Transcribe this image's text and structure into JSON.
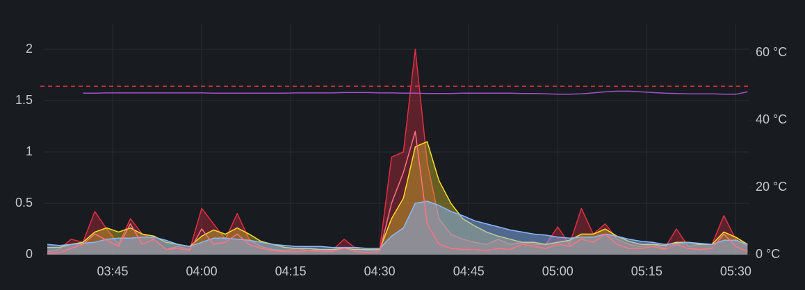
{
  "chart_data": {
    "type": "line",
    "x": [
      214,
      216,
      218,
      220,
      222,
      224,
      226,
      228,
      230,
      232,
      234,
      236,
      238,
      240,
      242,
      244,
      246,
      248,
      250,
      252,
      254,
      256,
      258,
      260,
      262,
      264,
      266,
      268,
      270,
      272,
      274,
      276,
      278,
      280,
      282,
      284,
      286,
      288,
      290,
      292,
      294,
      296,
      298,
      300,
      302,
      304,
      306,
      308,
      310,
      312,
      314,
      316,
      318,
      320,
      322,
      324,
      326,
      328,
      330,
      332
    ],
    "series": [
      {
        "color": "#e02f44",
        "fill": true,
        "values": [
          0.03,
          0.05,
          0.15,
          0.12,
          0.42,
          0.25,
          0.1,
          0.35,
          0.2,
          0.15,
          0.05,
          0.08,
          0.05,
          0.45,
          0.3,
          0.15,
          0.4,
          0.15,
          0.08,
          0.05,
          0.04,
          0.06,
          0.04,
          0.05,
          0.04,
          0.15,
          0.06,
          0.04,
          0.05,
          0.95,
          1.0,
          2.0,
          0.9,
          0.35,
          0.2,
          0.15,
          0.12,
          0.1,
          0.15,
          0.1,
          0.12,
          0.1,
          0.1,
          0.27,
          0.1,
          0.45,
          0.2,
          0.3,
          0.15,
          0.1,
          0.08,
          0.1,
          0.06,
          0.25,
          0.08,
          0.1,
          0.1,
          0.38,
          0.15,
          0.08
        ]
      },
      {
        "color": "#fade2a",
        "fill": true,
        "values": [
          0.07,
          0.07,
          0.1,
          0.12,
          0.22,
          0.26,
          0.22,
          0.26,
          0.2,
          0.18,
          0.12,
          0.1,
          0.08,
          0.18,
          0.24,
          0.2,
          0.26,
          0.2,
          0.13,
          0.1,
          0.07,
          0.06,
          0.06,
          0.05,
          0.05,
          0.06,
          0.05,
          0.05,
          0.05,
          0.35,
          0.55,
          1.05,
          1.1,
          0.72,
          0.5,
          0.35,
          0.28,
          0.22,
          0.18,
          0.15,
          0.12,
          0.12,
          0.1,
          0.12,
          0.14,
          0.2,
          0.2,
          0.25,
          0.18,
          0.13,
          0.1,
          0.1,
          0.09,
          0.12,
          0.12,
          0.1,
          0.1,
          0.22,
          0.17,
          0.1
        ]
      },
      {
        "color": "#8ab8ff",
        "fill": true,
        "values": [
          0.1,
          0.09,
          0.1,
          0.11,
          0.12,
          0.15,
          0.16,
          0.16,
          0.17,
          0.17,
          0.14,
          0.1,
          0.08,
          0.12,
          0.16,
          0.16,
          0.15,
          0.14,
          0.12,
          0.1,
          0.09,
          0.08,
          0.08,
          0.08,
          0.07,
          0.07,
          0.07,
          0.06,
          0.06,
          0.18,
          0.26,
          0.5,
          0.52,
          0.48,
          0.42,
          0.38,
          0.33,
          0.3,
          0.27,
          0.24,
          0.22,
          0.2,
          0.19,
          0.17,
          0.16,
          0.17,
          0.17,
          0.2,
          0.18,
          0.15,
          0.13,
          0.12,
          0.1,
          0.11,
          0.12,
          0.11,
          0.1,
          0.14,
          0.14,
          0.1
        ]
      },
      {
        "color": "#ff7383",
        "fill": false,
        "values": [
          0.01,
          0.02,
          0.06,
          0.1,
          0.2,
          0.14,
          0.08,
          0.3,
          0.1,
          0.15,
          0.05,
          0.06,
          0.04,
          0.25,
          0.1,
          0.12,
          0.2,
          0.1,
          0.06,
          0.04,
          0.03,
          0.03,
          0.04,
          0.03,
          0.03,
          0.06,
          0.03,
          0.02,
          0.03,
          0.5,
          0.8,
          1.2,
          0.3,
          0.1,
          0.06,
          0.05,
          0.05,
          0.04,
          0.06,
          0.05,
          0.1,
          0.08,
          0.06,
          0.1,
          0.08,
          0.15,
          0.12,
          0.2,
          0.1,
          0.06,
          0.06,
          0.08,
          0.05,
          0.1,
          0.06,
          0.05,
          0.06,
          0.2,
          0.08,
          0.03
        ]
      },
      {
        "color": "#a352cc",
        "fill": false,
        "axis": "y2",
        "values": [
          null,
          null,
          null,
          48,
          48,
          48.1,
          48.1,
          48.1,
          48.1,
          48.1,
          48.1,
          48.1,
          48.1,
          48.1,
          48,
          48,
          48,
          48,
          48,
          48,
          48,
          48.1,
          48.1,
          48.1,
          48.1,
          48.2,
          48.2,
          48.2,
          48.1,
          48.1,
          48,
          48,
          47.9,
          47.9,
          47.9,
          48,
          48,
          48,
          48,
          48,
          47.9,
          47.9,
          47.8,
          47.7,
          47.7,
          47.8,
          48.1,
          48.4,
          48.6,
          48.6,
          48.4,
          48.2,
          48,
          47.9,
          47.8,
          47.8,
          47.8,
          47.7,
          47.7,
          48.4
        ]
      }
    ],
    "threshold": 1.64,
    "threshold_color": "#e02f44",
    "xlim": [
      213.4,
      332.3
    ],
    "xticks": [
      {
        "value": 225,
        "label": "03:45"
      },
      {
        "value": 240,
        "label": "04:00"
      },
      {
        "value": 255,
        "label": "04:15"
      },
      {
        "value": 270,
        "label": "04:30"
      },
      {
        "value": 285,
        "label": "04:45"
      },
      {
        "value": 300,
        "label": "05:00"
      },
      {
        "value": 315,
        "label": "05:15"
      },
      {
        "value": 330,
        "label": "05:30"
      }
    ],
    "ylim": [
      0,
      2.25
    ],
    "yticks": [
      0,
      0.5,
      1,
      1.5,
      2
    ],
    "y2lim": [
      0,
      68.7
    ],
    "y2ticks": [
      {
        "value": 0,
        "label": "0 °C"
      },
      {
        "value": 20,
        "label": "20 °C"
      },
      {
        "value": 40,
        "label": "40 °C"
      },
      {
        "value": 60,
        "label": "60 °C"
      }
    ],
    "grid": true
  }
}
